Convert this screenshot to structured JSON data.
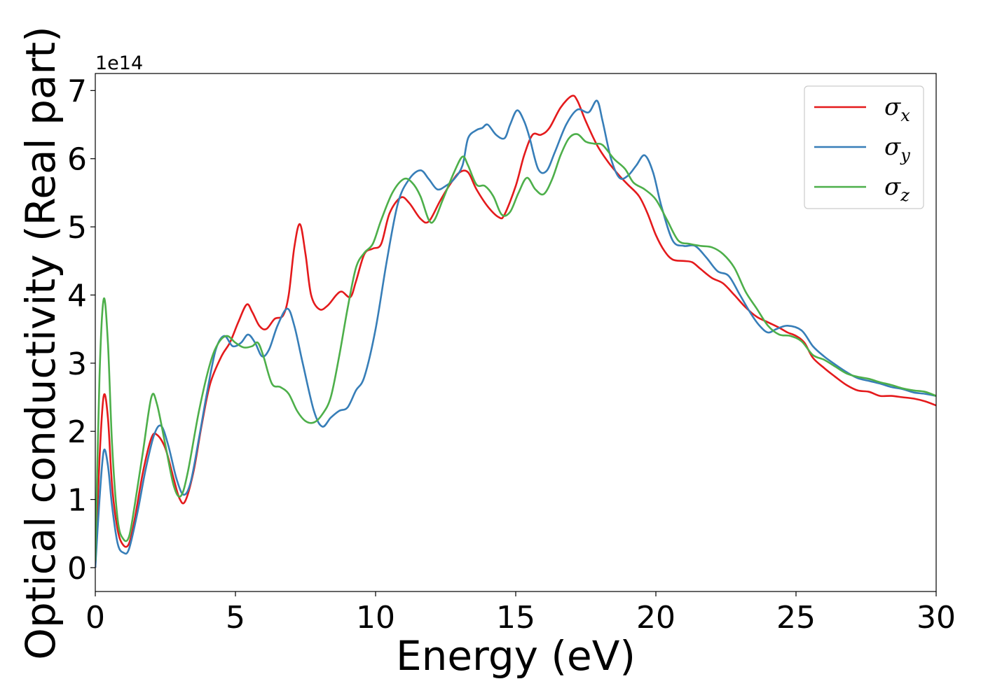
{
  "chart_data": {
    "type": "line",
    "xlabel": "Energy (eV)",
    "ylabel": "Optical conductivity (Real part)",
    "y_offset_label": "1e14",
    "xlim": [
      0,
      30
    ],
    "ylim": [
      -0.35,
      7.25
    ],
    "x_ticks": [
      0,
      5,
      10,
      15,
      20,
      25,
      30
    ],
    "y_ticks": [
      0,
      1,
      2,
      3,
      4,
      5,
      6,
      7
    ],
    "grid": false,
    "legend_position": "top-right",
    "series": [
      {
        "name": "σx",
        "symbol": "σ",
        "subscript": "x",
        "color": "#e41a1c",
        "points": [
          [
            0,
            0.0
          ],
          [
            0.15,
            1.6
          ],
          [
            0.3,
            2.52
          ],
          [
            0.45,
            2.2
          ],
          [
            0.6,
            1.2
          ],
          [
            0.8,
            0.55
          ],
          [
            1.0,
            0.33
          ],
          [
            1.2,
            0.35
          ],
          [
            1.4,
            0.7
          ],
          [
            1.7,
            1.4
          ],
          [
            2.0,
            1.9
          ],
          [
            2.2,
            1.95
          ],
          [
            2.5,
            1.75
          ],
          [
            2.8,
            1.3
          ],
          [
            3.0,
            1.02
          ],
          [
            3.2,
            0.97
          ],
          [
            3.5,
            1.4
          ],
          [
            3.8,
            2.1
          ],
          [
            4.1,
            2.7
          ],
          [
            4.5,
            3.1
          ],
          [
            4.8,
            3.3
          ],
          [
            5.1,
            3.6
          ],
          [
            5.4,
            3.86
          ],
          [
            5.6,
            3.75
          ],
          [
            5.85,
            3.55
          ],
          [
            6.1,
            3.5
          ],
          [
            6.4,
            3.65
          ],
          [
            6.7,
            3.7
          ],
          [
            6.9,
            4.0
          ],
          [
            7.1,
            4.7
          ],
          [
            7.3,
            5.04
          ],
          [
            7.5,
            4.6
          ],
          [
            7.7,
            4.0
          ],
          [
            8.0,
            3.79
          ],
          [
            8.3,
            3.85
          ],
          [
            8.6,
            4.0
          ],
          [
            8.8,
            4.05
          ],
          [
            9.1,
            3.97
          ],
          [
            9.3,
            4.2
          ],
          [
            9.6,
            4.6
          ],
          [
            9.9,
            4.68
          ],
          [
            10.2,
            4.75
          ],
          [
            10.5,
            5.2
          ],
          [
            10.9,
            5.43
          ],
          [
            11.2,
            5.35
          ],
          [
            11.6,
            5.12
          ],
          [
            11.9,
            5.08
          ],
          [
            12.3,
            5.38
          ],
          [
            12.7,
            5.65
          ],
          [
            13.0,
            5.8
          ],
          [
            13.3,
            5.8
          ],
          [
            13.6,
            5.55
          ],
          [
            14.0,
            5.3
          ],
          [
            14.4,
            5.14
          ],
          [
            14.6,
            5.18
          ],
          [
            15.0,
            5.6
          ],
          [
            15.3,
            6.05
          ],
          [
            15.6,
            6.35
          ],
          [
            15.9,
            6.35
          ],
          [
            16.2,
            6.45
          ],
          [
            16.6,
            6.75
          ],
          [
            17.0,
            6.92
          ],
          [
            17.2,
            6.85
          ],
          [
            17.5,
            6.55
          ],
          [
            17.9,
            6.2
          ],
          [
            18.3,
            5.95
          ],
          [
            18.7,
            5.75
          ],
          [
            19.0,
            5.62
          ],
          [
            19.4,
            5.45
          ],
          [
            19.7,
            5.2
          ],
          [
            20.0,
            4.88
          ],
          [
            20.3,
            4.65
          ],
          [
            20.6,
            4.52
          ],
          [
            21.0,
            4.5
          ],
          [
            21.3,
            4.48
          ],
          [
            21.6,
            4.38
          ],
          [
            22.0,
            4.25
          ],
          [
            22.4,
            4.17
          ],
          [
            22.8,
            4.0
          ],
          [
            23.2,
            3.82
          ],
          [
            23.6,
            3.68
          ],
          [
            24.0,
            3.6
          ],
          [
            24.4,
            3.52
          ],
          [
            24.7,
            3.45
          ],
          [
            25.0,
            3.4
          ],
          [
            25.3,
            3.3
          ],
          [
            25.6,
            3.08
          ],
          [
            26.0,
            2.93
          ],
          [
            26.4,
            2.8
          ],
          [
            26.8,
            2.68
          ],
          [
            27.2,
            2.6
          ],
          [
            27.6,
            2.58
          ],
          [
            28.0,
            2.52
          ],
          [
            28.4,
            2.52
          ],
          [
            28.8,
            2.5
          ],
          [
            29.2,
            2.48
          ],
          [
            29.6,
            2.44
          ],
          [
            30.0,
            2.38
          ]
        ]
      },
      {
        "name": "σy",
        "symbol": "σ",
        "subscript": "y",
        "color": "#377eb8",
        "points": [
          [
            0,
            0.0
          ],
          [
            0.15,
            1.0
          ],
          [
            0.3,
            1.71
          ],
          [
            0.45,
            1.5
          ],
          [
            0.6,
            0.9
          ],
          [
            0.8,
            0.35
          ],
          [
            1.0,
            0.22
          ],
          [
            1.2,
            0.27
          ],
          [
            1.5,
            0.8
          ],
          [
            1.8,
            1.45
          ],
          [
            2.1,
            1.95
          ],
          [
            2.35,
            2.08
          ],
          [
            2.6,
            1.8
          ],
          [
            2.9,
            1.3
          ],
          [
            3.15,
            1.07
          ],
          [
            3.4,
            1.25
          ],
          [
            3.7,
            1.9
          ],
          [
            4.0,
            2.6
          ],
          [
            4.3,
            3.2
          ],
          [
            4.6,
            3.4
          ],
          [
            4.9,
            3.25
          ],
          [
            5.2,
            3.3
          ],
          [
            5.45,
            3.42
          ],
          [
            5.7,
            3.3
          ],
          [
            5.95,
            3.1
          ],
          [
            6.2,
            3.2
          ],
          [
            6.5,
            3.55
          ],
          [
            6.85,
            3.8
          ],
          [
            7.1,
            3.55
          ],
          [
            7.4,
            3.0
          ],
          [
            7.8,
            2.3
          ],
          [
            8.1,
            2.07
          ],
          [
            8.4,
            2.2
          ],
          [
            8.7,
            2.3
          ],
          [
            9.0,
            2.35
          ],
          [
            9.3,
            2.6
          ],
          [
            9.6,
            2.8
          ],
          [
            10.0,
            3.5
          ],
          [
            10.4,
            4.5
          ],
          [
            10.8,
            5.35
          ],
          [
            11.2,
            5.7
          ],
          [
            11.6,
            5.83
          ],
          [
            11.9,
            5.7
          ],
          [
            12.2,
            5.55
          ],
          [
            12.5,
            5.6
          ],
          [
            12.8,
            5.7
          ],
          [
            13.1,
            5.9
          ],
          [
            13.3,
            6.3
          ],
          [
            13.6,
            6.42
          ],
          [
            13.8,
            6.45
          ],
          [
            14.0,
            6.5
          ],
          [
            14.3,
            6.35
          ],
          [
            14.6,
            6.3
          ],
          [
            14.8,
            6.5
          ],
          [
            15.05,
            6.71
          ],
          [
            15.3,
            6.55
          ],
          [
            15.5,
            6.3
          ],
          [
            15.8,
            5.85
          ],
          [
            16.1,
            5.82
          ],
          [
            16.4,
            6.1
          ],
          [
            16.8,
            6.5
          ],
          [
            17.2,
            6.72
          ],
          [
            17.6,
            6.68
          ],
          [
            17.9,
            6.85
          ],
          [
            18.1,
            6.55
          ],
          [
            18.4,
            6.0
          ],
          [
            18.7,
            5.72
          ],
          [
            19.0,
            5.75
          ],
          [
            19.3,
            5.9
          ],
          [
            19.6,
            6.05
          ],
          [
            19.9,
            5.8
          ],
          [
            20.2,
            5.3
          ],
          [
            20.6,
            4.8
          ],
          [
            21.0,
            4.72
          ],
          [
            21.4,
            4.72
          ],
          [
            21.8,
            4.55
          ],
          [
            22.2,
            4.35
          ],
          [
            22.6,
            4.28
          ],
          [
            23.0,
            4.0
          ],
          [
            23.4,
            3.72
          ],
          [
            23.7,
            3.55
          ],
          [
            24.0,
            3.45
          ],
          [
            24.3,
            3.5
          ],
          [
            24.7,
            3.55
          ],
          [
            25.2,
            3.48
          ],
          [
            25.6,
            3.25
          ],
          [
            26.0,
            3.1
          ],
          [
            26.4,
            2.98
          ],
          [
            26.8,
            2.87
          ],
          [
            27.2,
            2.78
          ],
          [
            27.6,
            2.74
          ],
          [
            28.0,
            2.7
          ],
          [
            28.4,
            2.65
          ],
          [
            28.8,
            2.62
          ],
          [
            29.2,
            2.57
          ],
          [
            29.6,
            2.55
          ],
          [
            30.0,
            2.52
          ]
        ]
      },
      {
        "name": "σz",
        "symbol": "σ",
        "subscript": "z",
        "color": "#4daf4a",
        "points": [
          [
            0,
            0.1
          ],
          [
            0.15,
            2.8
          ],
          [
            0.3,
            3.94
          ],
          [
            0.45,
            3.3
          ],
          [
            0.6,
            1.8
          ],
          [
            0.8,
            0.7
          ],
          [
            1.0,
            0.42
          ],
          [
            1.2,
            0.45
          ],
          [
            1.4,
            0.9
          ],
          [
            1.7,
            1.7
          ],
          [
            2.0,
            2.5
          ],
          [
            2.2,
            2.4
          ],
          [
            2.5,
            1.8
          ],
          [
            2.8,
            1.2
          ],
          [
            3.05,
            1.05
          ],
          [
            3.3,
            1.4
          ],
          [
            3.7,
            2.3
          ],
          [
            4.1,
            3.0
          ],
          [
            4.4,
            3.3
          ],
          [
            4.7,
            3.4
          ],
          [
            5.0,
            3.3
          ],
          [
            5.3,
            3.23
          ],
          [
            5.6,
            3.25
          ],
          [
            5.8,
            3.3
          ],
          [
            6.0,
            3.1
          ],
          [
            6.3,
            2.7
          ],
          [
            6.6,
            2.65
          ],
          [
            6.9,
            2.55
          ],
          [
            7.2,
            2.3
          ],
          [
            7.5,
            2.15
          ],
          [
            7.8,
            2.13
          ],
          [
            8.1,
            2.25
          ],
          [
            8.4,
            2.5
          ],
          [
            8.7,
            3.1
          ],
          [
            9.0,
            3.8
          ],
          [
            9.3,
            4.4
          ],
          [
            9.6,
            4.62
          ],
          [
            9.9,
            4.75
          ],
          [
            10.2,
            5.1
          ],
          [
            10.6,
            5.5
          ],
          [
            11.0,
            5.7
          ],
          [
            11.3,
            5.65
          ],
          [
            11.6,
            5.45
          ],
          [
            11.9,
            5.1
          ],
          [
            12.1,
            5.1
          ],
          [
            12.4,
            5.4
          ],
          [
            12.8,
            5.8
          ],
          [
            13.1,
            6.03
          ],
          [
            13.3,
            5.9
          ],
          [
            13.6,
            5.62
          ],
          [
            13.9,
            5.6
          ],
          [
            14.2,
            5.45
          ],
          [
            14.5,
            5.18
          ],
          [
            14.8,
            5.22
          ],
          [
            15.1,
            5.5
          ],
          [
            15.4,
            5.72
          ],
          [
            15.7,
            5.55
          ],
          [
            16.0,
            5.48
          ],
          [
            16.3,
            5.7
          ],
          [
            16.6,
            6.05
          ],
          [
            16.9,
            6.3
          ],
          [
            17.2,
            6.36
          ],
          [
            17.5,
            6.25
          ],
          [
            17.8,
            6.22
          ],
          [
            18.1,
            6.2
          ],
          [
            18.5,
            6.0
          ],
          [
            18.9,
            5.85
          ],
          [
            19.2,
            5.65
          ],
          [
            19.6,
            5.55
          ],
          [
            20.0,
            5.4
          ],
          [
            20.4,
            5.1
          ],
          [
            20.8,
            4.8
          ],
          [
            21.2,
            4.75
          ],
          [
            21.6,
            4.72
          ],
          [
            22.0,
            4.7
          ],
          [
            22.4,
            4.6
          ],
          [
            22.8,
            4.4
          ],
          [
            23.2,
            4.05
          ],
          [
            23.6,
            3.8
          ],
          [
            24.0,
            3.55
          ],
          [
            24.4,
            3.42
          ],
          [
            24.8,
            3.4
          ],
          [
            25.2,
            3.32
          ],
          [
            25.6,
            3.12
          ],
          [
            26.0,
            3.05
          ],
          [
            26.4,
            2.95
          ],
          [
            26.8,
            2.85
          ],
          [
            27.2,
            2.8
          ],
          [
            27.6,
            2.77
          ],
          [
            28.0,
            2.72
          ],
          [
            28.4,
            2.68
          ],
          [
            28.8,
            2.63
          ],
          [
            29.2,
            2.6
          ],
          [
            29.6,
            2.58
          ],
          [
            30.0,
            2.52
          ]
        ]
      }
    ]
  }
}
